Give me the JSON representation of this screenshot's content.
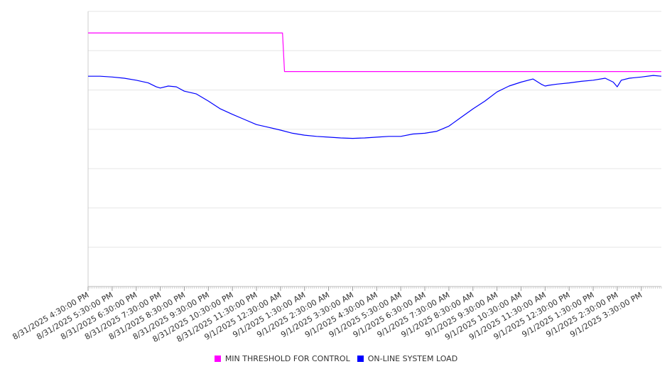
{
  "chart_data": {
    "type": "line",
    "title": "",
    "xlabel": "",
    "ylabel": "",
    "grid": true,
    "legend_position": "bottom",
    "x_range": [
      "8/31/2025 4:30:00 PM",
      "9/1/2025 4:20:00 PM"
    ],
    "y_range": [
      0,
      7
    ],
    "tick_labels": [
      "8/31/2025 4:30:00 PM",
      "8/31/2025 5:30:00 PM",
      "8/31/2025 6:30:00 PM",
      "8/31/2025 7:30:00 PM",
      "8/31/2025 8:30:00 PM",
      "8/31/2025 9:30:00 PM",
      "8/31/2025 10:30:00 PM",
      "8/31/2025 11:30:00 PM",
      "9/1/2025 12:30:00 AM",
      "9/1/2025 1:30:00 AM",
      "9/1/2025 2:30:00 AM",
      "9/1/2025 3:30:00 AM",
      "9/1/2025 4:30:00 AM",
      "9/1/2025 5:30:00 AM",
      "9/1/2025 6:30:00 AM",
      "9/1/2025 7:30:00 AM",
      "9/1/2025 8:30:00 AM",
      "9/1/2025 9:30:00 AM",
      "9/1/2025 10:30:00 AM",
      "9/1/2025 11:30:00 AM",
      "9/1/2025 12:30:00 PM",
      "9/1/2025 1:30:00 PM",
      "9/1/2025 2:30:00 PM",
      "9/1/2025 3:30:00 PM"
    ],
    "series": [
      {
        "name": "MIN THRESHOLD FOR CONTROL",
        "color": "#ff00ff",
        "x": [
          "8/31/2025 4:30:00 PM",
          "9/1/2025 12:35:00 AM",
          "9/1/2025 12:40:00 AM",
          "9/1/2025 4:20:00 PM"
        ],
        "y": [
          6.45,
          6.45,
          5.47,
          5.47
        ]
      },
      {
        "name": "ON-LINE SYSTEM LOAD",
        "color": "#0000ff",
        "x": [
          "8/31/2025 4:30:00 PM",
          "8/31/2025 5:00:00 PM",
          "8/31/2025 5:30:00 PM",
          "8/31/2025 6:00:00 PM",
          "8/31/2025 6:30:00 PM",
          "8/31/2025 7:00:00 PM",
          "8/31/2025 7:20:00 PM",
          "8/31/2025 7:30:00 PM",
          "8/31/2025 7:50:00 PM",
          "8/31/2025 8:10:00 PM",
          "8/31/2025 8:30:00 PM",
          "8/31/2025 9:00:00 PM",
          "8/31/2025 9:30:00 PM",
          "8/31/2025 10:00:00 PM",
          "8/31/2025 10:30:00 PM",
          "8/31/2025 11:00:00 PM",
          "8/31/2025 11:30:00 PM",
          "9/1/2025 12:00:00 AM",
          "9/1/2025 12:30:00 AM",
          "9/1/2025 1:00:00 AM",
          "9/1/2025 1:30:00 AM",
          "9/1/2025 2:00:00 AM",
          "9/1/2025 2:30:00 AM",
          "9/1/2025 3:00:00 AM",
          "9/1/2025 3:30:00 AM",
          "9/1/2025 4:00:00 AM",
          "9/1/2025 4:30:00 AM",
          "9/1/2025 5:00:00 AM",
          "9/1/2025 5:30:00 AM",
          "9/1/2025 6:00:00 AM",
          "9/1/2025 6:30:00 AM",
          "9/1/2025 7:00:00 AM",
          "9/1/2025 7:30:00 AM",
          "9/1/2025 8:00:00 AM",
          "9/1/2025 8:30:00 AM",
          "9/1/2025 9:00:00 AM",
          "9/1/2025 9:30:00 AM",
          "9/1/2025 10:00:00 AM",
          "9/1/2025 10:30:00 AM",
          "9/1/2025 11:00:00 AM",
          "9/1/2025 11:20:00 AM",
          "9/1/2025 11:30:00 AM",
          "9/1/2025 11:40:00 AM",
          "9/1/2025 12:00:00 PM",
          "9/1/2025 12:30:00 PM",
          "9/1/2025 1:00:00 PM",
          "9/1/2025 1:30:00 PM",
          "9/1/2025 2:00:00 PM",
          "9/1/2025 2:20:00 PM",
          "9/1/2025 2:30:00 PM",
          "9/1/2025 2:40:00 PM",
          "9/1/2025 3:00:00 PM",
          "9/1/2025 3:30:00 PM",
          "9/1/2025 4:00:00 PM",
          "9/1/2025 4:20:00 PM"
        ],
        "y": [
          5.35,
          5.35,
          5.33,
          5.3,
          5.25,
          5.18,
          5.08,
          5.05,
          5.1,
          5.08,
          4.97,
          4.9,
          4.72,
          4.52,
          4.38,
          4.25,
          4.12,
          4.05,
          3.98,
          3.9,
          3.85,
          3.82,
          3.8,
          3.78,
          3.77,
          3.78,
          3.8,
          3.82,
          3.82,
          3.88,
          3.9,
          3.95,
          4.08,
          4.3,
          4.52,
          4.72,
          4.95,
          5.1,
          5.2,
          5.28,
          5.15,
          5.1,
          5.12,
          5.15,
          5.18,
          5.22,
          5.25,
          5.3,
          5.2,
          5.08,
          5.25,
          5.3,
          5.33,
          5.37,
          5.35
        ]
      }
    ]
  }
}
